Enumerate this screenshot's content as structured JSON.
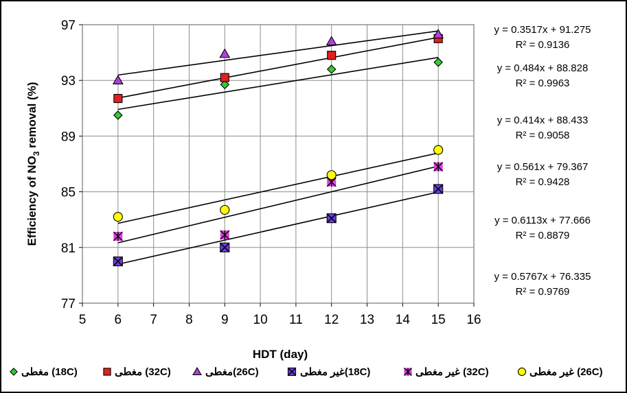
{
  "chart_data": {
    "type": "scatter",
    "xlabel": "HDT (day)",
    "ylabel_prefix": "Efficiency of  NO",
    "ylabel_sub": "3",
    "ylabel_suffix": "  removal (%)",
    "xlim": [
      5,
      16
    ],
    "ylim": [
      77,
      97
    ],
    "xticks": [
      5,
      6,
      7,
      8,
      9,
      10,
      11,
      12,
      13,
      14,
      15,
      16
    ],
    "yticks": [
      77,
      81,
      85,
      89,
      93,
      97
    ],
    "grid": true,
    "legend_position": "bottom",
    "series": [
      {
        "name": "مغطى (18C)",
        "marker": "diamond",
        "color": "#33cc33",
        "x": [
          6,
          9,
          12,
          15
        ],
        "y": [
          90.5,
          92.7,
          93.8,
          94.3
        ]
      },
      {
        "name": "مغطى (32C)",
        "marker": "square",
        "color": "#e02020",
        "x": [
          6,
          9,
          12,
          15
        ],
        "y": [
          91.7,
          93.2,
          94.8,
          96.0
        ]
      },
      {
        "name": "مغطى(26C)",
        "marker": "triangle",
        "color": "#b040e0",
        "x": [
          6,
          9,
          12,
          15
        ],
        "y": [
          93.0,
          94.9,
          95.8,
          96.3
        ]
      },
      {
        "name": "غير مغطى(18C)",
        "marker": "x-square",
        "color": "#6a3ee0",
        "x": [
          6,
          9,
          12,
          15
        ],
        "y": [
          80.0,
          81.0,
          83.1,
          85.2
        ]
      },
      {
        "name": "غير مغطى (32C)",
        "marker": "star-square",
        "color": "#e040e0",
        "x": [
          6,
          9,
          12,
          15
        ],
        "y": [
          81.8,
          81.9,
          85.7,
          86.8
        ]
      },
      {
        "name": "غير مغطى (26C)",
        "marker": "circle",
        "color": "#ffff00",
        "x": [
          6,
          9,
          12,
          15
        ],
        "y": [
          83.2,
          83.7,
          86.2,
          88.0
        ]
      }
    ],
    "trendlines": [
      {
        "slope": 0.3517,
        "intercept": 91.275
      },
      {
        "slope": 0.484,
        "intercept": 88.828
      },
      {
        "slope": 0.414,
        "intercept": 88.433
      },
      {
        "slope": 0.561,
        "intercept": 79.367
      },
      {
        "slope": 0.6113,
        "intercept": 77.666
      },
      {
        "slope": 0.5767,
        "intercept": 76.335
      }
    ],
    "equations": [
      {
        "eq": "y = 0.3517x + 91.275",
        "r2": "R² = 0.9136"
      },
      {
        "eq": "y = 0.484x + 88.828",
        "r2": "R² = 0.9963"
      },
      {
        "eq": "y = 0.414x + 88.433",
        "r2": "R² = 0.9058"
      },
      {
        "eq": "y = 0.561x + 79.367",
        "r2": "R² = 0.9428"
      },
      {
        "eq": "y = 0.6113x + 77.666",
        "r2": "R² = 0.8879"
      },
      {
        "eq": "y = 0.5767x + 76.335",
        "r2": "R² = 0.9769"
      }
    ]
  }
}
